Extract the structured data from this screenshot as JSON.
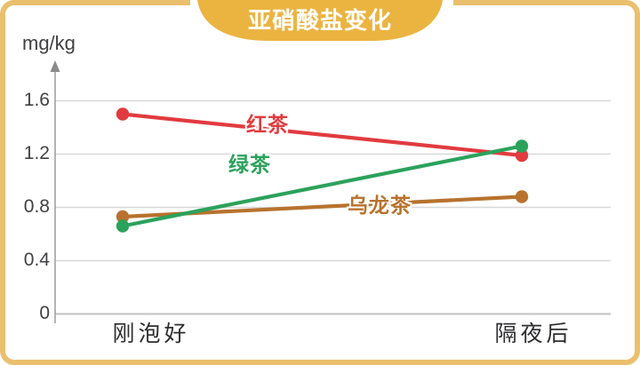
{
  "header": {
    "title": "亚硝酸盐变化",
    "badge_color": "#ebb441",
    "title_color": "#ffffff"
  },
  "frame": {
    "border_color": "#eabf6e",
    "background_color": "#ffffff"
  },
  "chart_data": {
    "type": "line",
    "title": "亚硝酸盐变化",
    "ylabel": "mg/kg",
    "categories": [
      "刚泡好",
      "隔夜后"
    ],
    "series": [
      {
        "name": "红茶",
        "color": "#e23b3f",
        "values": [
          1.5,
          1.19
        ]
      },
      {
        "name": "绿茶",
        "color": "#2ba25c",
        "values": [
          0.66,
          1.26
        ]
      },
      {
        "name": "乌龙茶",
        "color": "#b8722e",
        "values": [
          0.73,
          0.88
        ]
      }
    ],
    "yticks": [
      1.6,
      1.2,
      0.8,
      0.4,
      0
    ],
    "ylim": [
      0,
      1.73
    ],
    "grid": true,
    "legend_position": "inline-labels",
    "axis_arrow": true
  }
}
